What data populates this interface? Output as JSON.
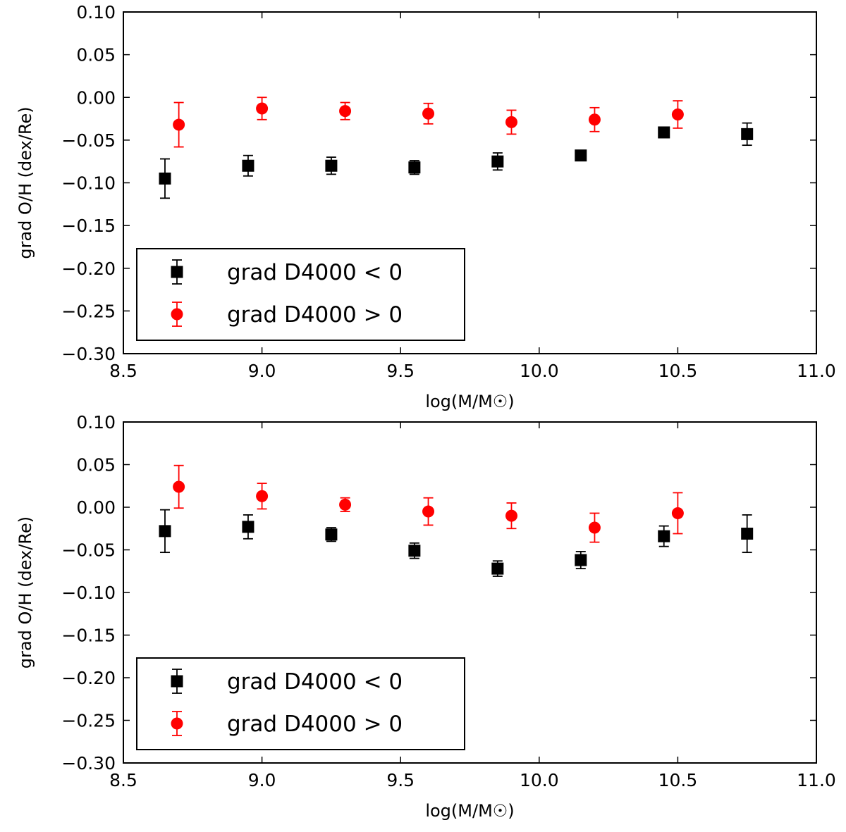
{
  "chart_data": [
    {
      "type": "scatter",
      "panel": "top",
      "xlabel": "log(M/M☉)",
      "ylabel": "grad O/H (dex/Re)",
      "xlim": [
        8.5,
        11.0
      ],
      "ylim": [
        -0.3,
        0.1
      ],
      "xticks": [
        "8.5",
        "9.0",
        "9.5",
        "10.0",
        "10.5",
        "11.0"
      ],
      "yticks": [
        "0.10",
        "0.05",
        "0.00",
        "−0.05",
        "−0.10",
        "−0.15",
        "−0.20",
        "−0.25",
        "−0.30"
      ],
      "legend_position": "lower-left",
      "grid": false,
      "series": [
        {
          "name": "grad D4000 < 0",
          "marker": "square",
          "color": "#000000",
          "x": [
            8.65,
            8.95,
            9.25,
            9.55,
            9.85,
            10.15,
            10.45,
            10.75
          ],
          "y": [
            -0.095,
            -0.08,
            -0.08,
            -0.082,
            -0.075,
            -0.068,
            -0.041,
            -0.043
          ],
          "yerr": [
            0.023,
            0.012,
            0.01,
            0.008,
            0.01,
            0.006,
            0.006,
            0.013
          ]
        },
        {
          "name": "grad D4000 > 0",
          "marker": "circle",
          "color": "#ff0000",
          "x": [
            8.7,
            9.0,
            9.3,
            9.6,
            9.9,
            10.2,
            10.5
          ],
          "y": [
            -0.032,
            -0.013,
            -0.016,
            -0.019,
            -0.029,
            -0.026,
            -0.02
          ],
          "yerr": [
            0.026,
            0.013,
            0.01,
            0.012,
            0.014,
            0.014,
            0.016
          ]
        }
      ]
    },
    {
      "type": "scatter",
      "panel": "bottom",
      "xlabel": "log(M/M☉)",
      "ylabel": "grad O/H (dex/Re)",
      "xlim": [
        8.5,
        11.0
      ],
      "ylim": [
        -0.3,
        0.1
      ],
      "xticks": [
        "8.5",
        "9.0",
        "9.5",
        "10.0",
        "10.5",
        "11.0"
      ],
      "yticks": [
        "0.10",
        "0.05",
        "0.00",
        "−0.05",
        "−0.10",
        "−0.15",
        "−0.20",
        "−0.25",
        "−0.30"
      ],
      "legend_position": "lower-left",
      "grid": false,
      "series": [
        {
          "name": "grad D4000 < 0",
          "marker": "square",
          "color": "#000000",
          "x": [
            8.65,
            8.95,
            9.25,
            9.55,
            9.85,
            10.15,
            10.45,
            10.75
          ],
          "y": [
            -0.028,
            -0.023,
            -0.032,
            -0.051,
            -0.072,
            -0.062,
            -0.034,
            -0.031
          ],
          "yerr": [
            0.025,
            0.014,
            0.008,
            0.009,
            0.009,
            0.01,
            0.012,
            0.022
          ]
        },
        {
          "name": "grad D4000 > 0",
          "marker": "circle",
          "color": "#ff0000",
          "x": [
            8.7,
            9.0,
            9.3,
            9.6,
            9.9,
            10.2,
            10.5
          ],
          "y": [
            0.024,
            0.013,
            0.003,
            -0.005,
            -0.01,
            -0.024,
            -0.007
          ],
          "yerr": [
            0.025,
            0.015,
            0.008,
            0.016,
            0.015,
            0.017,
            0.024
          ]
        }
      ]
    }
  ]
}
